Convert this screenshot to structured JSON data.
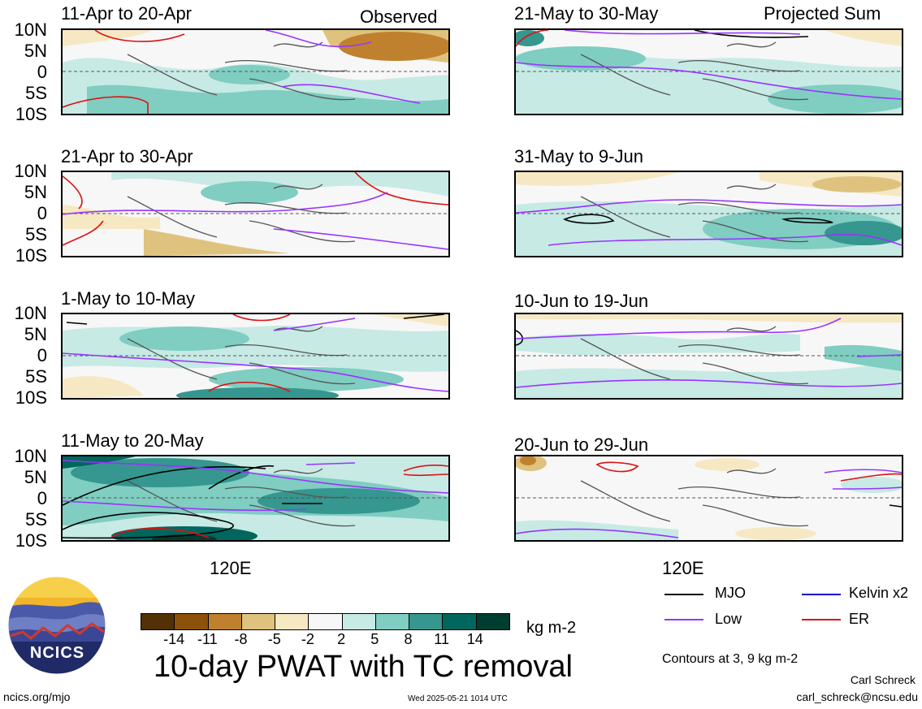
{
  "figure": {
    "panel_mode_observed": "Observed",
    "panel_mode_projected": "Projected Sum",
    "x_tick": "120E",
    "lat_ticks": [
      "10N",
      "5N",
      "0",
      "5S",
      "10S"
    ],
    "title": "10-day PWAT with TC removal",
    "units": "kg m-2",
    "colorbar_ticks": [
      "-14",
      "-11",
      "-8",
      "-5",
      "-2",
      "2",
      "5",
      "8",
      "11",
      "14"
    ],
    "colorbar_colors": [
      "#543005",
      "#8c510a",
      "#bf812d",
      "#dfc27d",
      "#f6e8c3",
      "#f7f7f7",
      "#c7eae5",
      "#80cdc1",
      "#35978f",
      "#01665e",
      "#003c30"
    ],
    "contour_note": "Contours at 3, 9 kg m-2",
    "author": "Carl Schreck",
    "email": "carl_schreck@ncsu.edu",
    "website": "ncics.org/mjo",
    "timestamp": "Wed 2025-05-21 1014 UTC",
    "logo_text": "NCICS"
  },
  "legend": [
    {
      "label": "MJO",
      "color": "#000000"
    },
    {
      "label": "Kelvin x2",
      "color": "#0000cc"
    },
    {
      "label": "Low",
      "color": "#9933ff"
    },
    {
      "label": "ER",
      "color": "#dd1111"
    }
  ],
  "panels": [
    {
      "label": "11-Apr to 20-Apr",
      "type": "observed"
    },
    {
      "label": "21-Apr to 30-Apr",
      "type": "observed"
    },
    {
      "label": "1-May to 10-May",
      "type": "observed"
    },
    {
      "label": "11-May to 20-May",
      "type": "observed"
    },
    {
      "label": "21-May to 30-May",
      "type": "projected"
    },
    {
      "label": "31-May to 9-Jun",
      "type": "projected"
    },
    {
      "label": "10-Jun to 19-Jun",
      "type": "projected"
    },
    {
      "label": "20-Jun to 29-Jun",
      "type": "projected"
    }
  ]
}
